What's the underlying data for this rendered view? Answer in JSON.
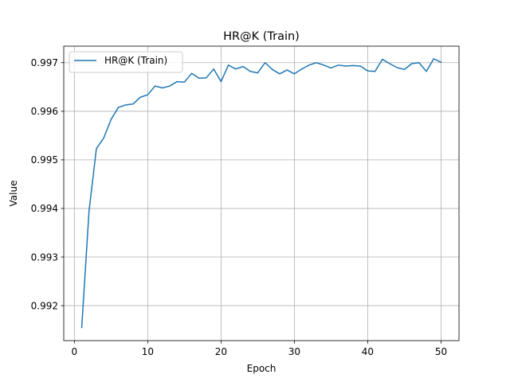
{
  "chart_data": {
    "type": "line",
    "title": "HR@K (Train)",
    "xlabel": "Epoch",
    "ylabel": "Value",
    "xlim": [
      -1.45,
      52.45
    ],
    "ylim": [
      0.99128,
      0.99734
    ],
    "xticks": [
      0,
      10,
      20,
      30,
      40,
      50
    ],
    "yticks": [
      0.992,
      0.993,
      0.994,
      0.995,
      0.996,
      0.997
    ],
    "grid": true,
    "legend_position": "top-left",
    "series": [
      {
        "name": "HR@K (Train)",
        "color": "#1f77b4",
        "x": [
          1,
          2,
          3,
          4,
          5,
          6,
          7,
          8,
          9,
          10,
          11,
          12,
          13,
          14,
          15,
          16,
          17,
          18,
          19,
          20,
          21,
          22,
          23,
          24,
          25,
          26,
          27,
          28,
          29,
          30,
          31,
          32,
          33,
          34,
          35,
          36,
          37,
          38,
          39,
          40,
          41,
          42,
          43,
          44,
          45,
          46,
          47,
          48,
          49,
          50
        ],
        "values": [
          0.99155,
          0.99395,
          0.99523,
          0.99545,
          0.99583,
          0.99608,
          0.99613,
          0.99615,
          0.99629,
          0.99634,
          0.99652,
          0.99648,
          0.99652,
          0.99661,
          0.9966,
          0.99678,
          0.99668,
          0.99669,
          0.99687,
          0.99661,
          0.99695,
          0.99687,
          0.99692,
          0.99682,
          0.99679,
          0.997,
          0.99686,
          0.99677,
          0.99685,
          0.99677,
          0.99687,
          0.99695,
          0.997,
          0.99695,
          0.99689,
          0.99695,
          0.99693,
          0.99694,
          0.99693,
          0.99683,
          0.99682,
          0.99707,
          0.99698,
          0.9969,
          0.99686,
          0.99698,
          0.997,
          0.99682,
          0.99708,
          0.99701
        ]
      }
    ]
  }
}
